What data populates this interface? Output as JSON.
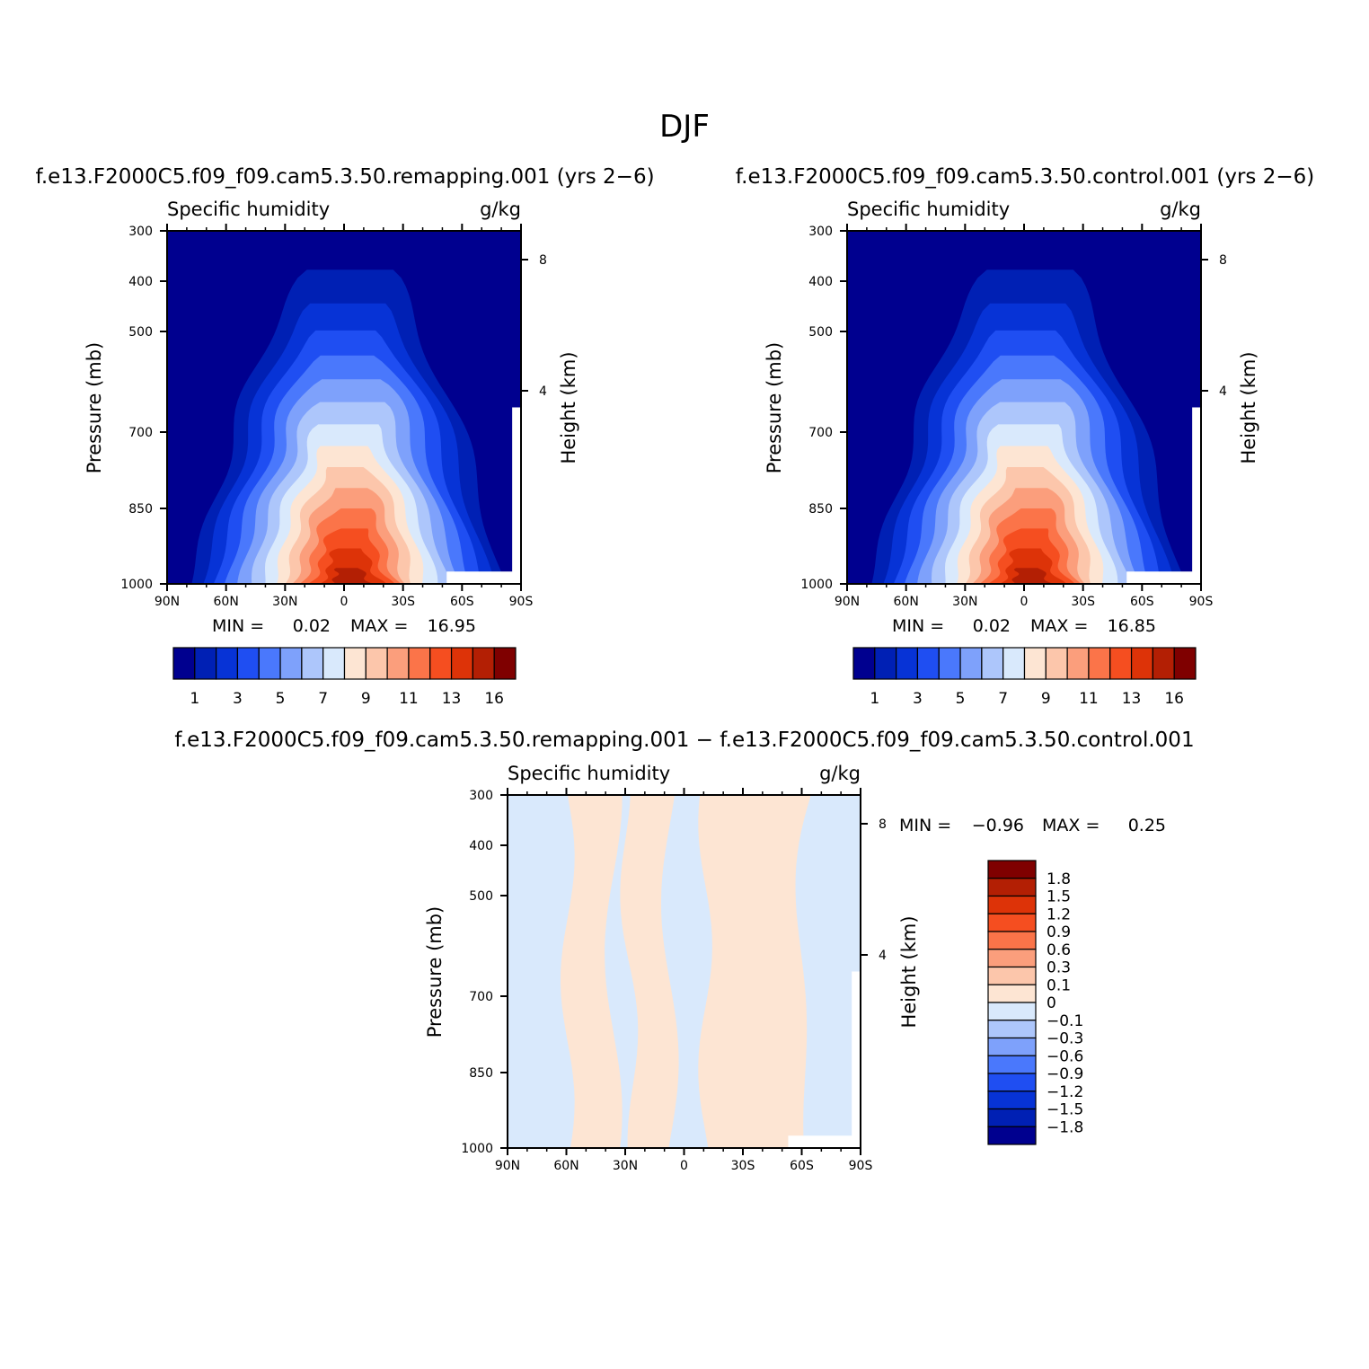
{
  "figure": {
    "title": "DJF"
  },
  "chart_data": [
    {
      "type": "heatmap",
      "panel": "remapping",
      "run_title": "f.e13.F2000C5.f09_f09.cam5.3.50.remapping.001  (yrs 2−6)",
      "variable": "Specific humidity",
      "units": "g/kg",
      "ylabel": "Pressure (mb)",
      "y2label": "Height (km)",
      "x_ticks": [
        "90N",
        "60N",
        "30N",
        "0",
        "30S",
        "60S",
        "90S"
      ],
      "y_ticks": [
        "300",
        "400",
        "500",
        "700",
        "850",
        "1000"
      ],
      "y2_ticks": [
        "8",
        "4"
      ],
      "ylim": [
        1000,
        300
      ],
      "min_text": "MIN =",
      "min_value": "0.02",
      "max_text": "MAX =",
      "max_value": "16.95",
      "contour_levels": [
        1,
        2,
        3,
        4,
        5,
        6,
        7,
        8,
        9,
        10,
        11,
        12,
        13,
        14,
        16
      ],
      "colorbar_labels": [
        "1",
        "3",
        "5",
        "7",
        "9",
        "11",
        "13",
        "16"
      ],
      "colorbar_colors": [
        "#00008f",
        "#0020b4",
        "#0733d6",
        "#1f4ef2",
        "#4a78fc",
        "#7ea1fb",
        "#adc6fb",
        "#d9e9fc",
        "#fde5d3",
        "#fcc6ab",
        "#fb9e7c",
        "#fb7449",
        "#f54e20",
        "#dd3308",
        "#b31f04",
        "#7f0000"
      ],
      "peak_value": 16.95,
      "peak_latitude": 0,
      "peak_pressure": 1000
    },
    {
      "type": "heatmap",
      "panel": "control",
      "run_title": "f.e13.F2000C5.f09_f09.cam5.3.50.control.001  (yrs 2−6)",
      "variable": "Specific humidity",
      "units": "g/kg",
      "ylabel": "Pressure (mb)",
      "y2label": "Height (km)",
      "x_ticks": [
        "90N",
        "60N",
        "30N",
        "0",
        "30S",
        "60S",
        "90S"
      ],
      "y_ticks": [
        "300",
        "400",
        "500",
        "700",
        "850",
        "1000"
      ],
      "y2_ticks": [
        "8",
        "4"
      ],
      "ylim": [
        1000,
        300
      ],
      "min_text": "MIN =",
      "min_value": "0.02",
      "max_text": "MAX =",
      "max_value": "16.85",
      "contour_levels": [
        1,
        2,
        3,
        4,
        5,
        6,
        7,
        8,
        9,
        10,
        11,
        12,
        13,
        14,
        16
      ],
      "colorbar_labels": [
        "1",
        "3",
        "5",
        "7",
        "9",
        "11",
        "13",
        "16"
      ],
      "colorbar_colors": [
        "#00008f",
        "#0020b4",
        "#0733d6",
        "#1f4ef2",
        "#4a78fc",
        "#7ea1fb",
        "#adc6fb",
        "#d9e9fc",
        "#fde5d3",
        "#fcc6ab",
        "#fb9e7c",
        "#fb7449",
        "#f54e20",
        "#dd3308",
        "#b31f04",
        "#7f0000"
      ],
      "peak_value": 16.85,
      "peak_latitude": 0,
      "peak_pressure": 1000
    },
    {
      "type": "heatmap",
      "panel": "difference",
      "run_title": "f.e13.F2000C5.f09_f09.cam5.3.50.remapping.001  −  f.e13.F2000C5.f09_f09.cam5.3.50.control.001",
      "variable": "Specific humidity",
      "units": "g/kg",
      "ylabel": "Pressure (mb)",
      "y2label": "Height (km)",
      "x_ticks": [
        "90N",
        "60N",
        "30N",
        "0",
        "30S",
        "60S",
        "90S"
      ],
      "y_ticks": [
        "300",
        "400",
        "500",
        "700",
        "850",
        "1000"
      ],
      "y2_ticks": [
        "8",
        "4"
      ],
      "ylim": [
        1000,
        300
      ],
      "min_text": "MIN =",
      "min_value": "−0.96",
      "max_text": "MAX =",
      "max_value": "0.25",
      "colorbar_labels": [
        "1.8",
        "1.5",
        "1.2",
        "0.9",
        "0.6",
        "0.3",
        "0.1",
        "0",
        "−0.1",
        "−0.3",
        "−0.6",
        "−0.9",
        "−1.2",
        "−1.5",
        "−1.8"
      ],
      "colorbar_colors": [
        "#7f0000",
        "#b31f04",
        "#dd3308",
        "#f54e20",
        "#fb7449",
        "#fb9e7c",
        "#fcc6ab",
        "#fde5d3",
        "#d9e9fc",
        "#adc6fb",
        "#7ea1fb",
        "#4a78fc",
        "#1f4ef2",
        "#0733d6",
        "#0020b4",
        "#00008f"
      ],
      "dominant_positive_color": "#fde5d3",
      "dominant_negative_color": "#d9e9fc"
    }
  ]
}
